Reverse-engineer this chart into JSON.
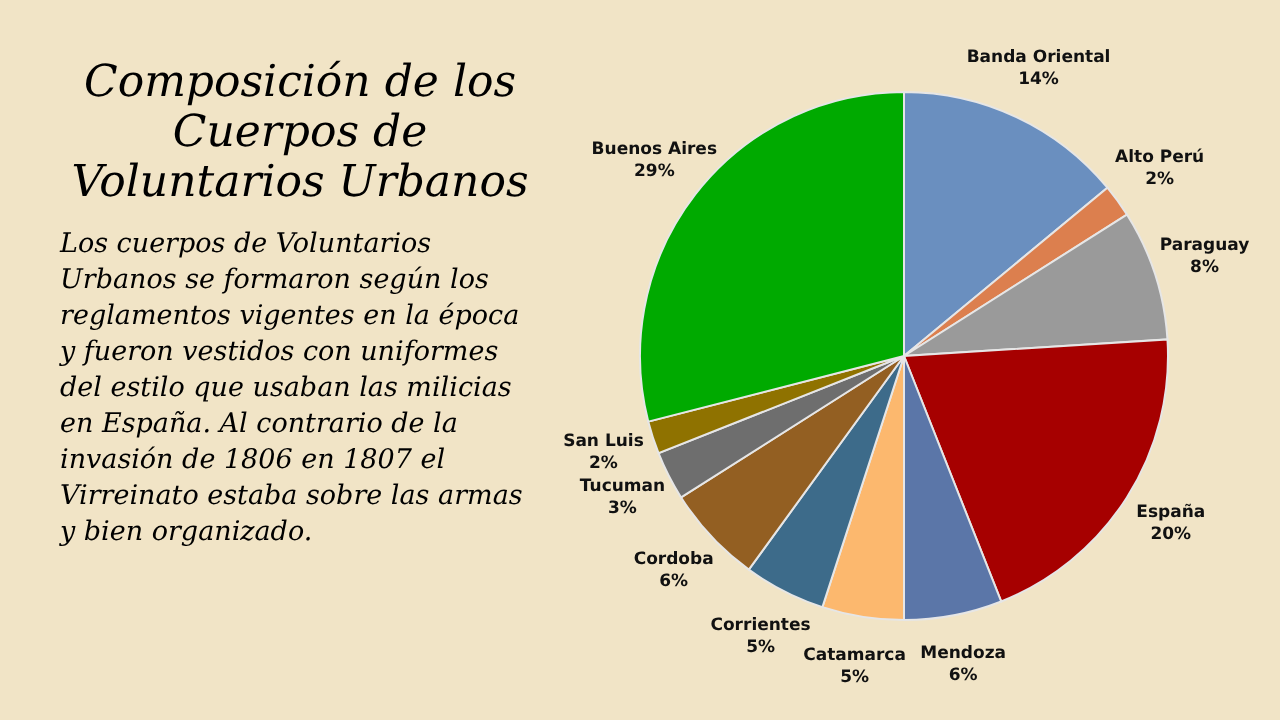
{
  "chart_data": {
    "type": "pie",
    "title": "Composición de los Cuerpos de Voluntarios Urbanos",
    "annotations": [
      "Los cuerpos de Voluntarios Urbanos se formaron según los reglamentos vigentes en la época y fueron vestidos con uniformes del estilo que usaban las milicias en España. Al contrario de la invasión de 1806 en 1807 el Virreinato estaba sobre las armas y bien organizado."
    ],
    "categories": [
      "Banda Oriental",
      "Alto Perú",
      "Paraguay",
      "España",
      "Mendoza",
      "Catamarca",
      "Corrientes",
      "Cordoba",
      "Tucuman",
      "San Luis",
      "Buenos Aires"
    ],
    "values": [
      14,
      2,
      8,
      20,
      6,
      5,
      5,
      6,
      3,
      2,
      29
    ],
    "colors": [
      "#6a8fbf",
      "#dc7f4e",
      "#9a9a9a",
      "#a60000",
      "#5b76a8",
      "#fcb86e",
      "#3d6b8a",
      "#935f22",
      "#6e6e6e",
      "#8f7200",
      "#00aa00"
    ],
    "value_labels": [
      "14%",
      "2%",
      "8%",
      "20%",
      "6%",
      "5%",
      "5%",
      "6%",
      "3%",
      "2%",
      "29%"
    ]
  }
}
